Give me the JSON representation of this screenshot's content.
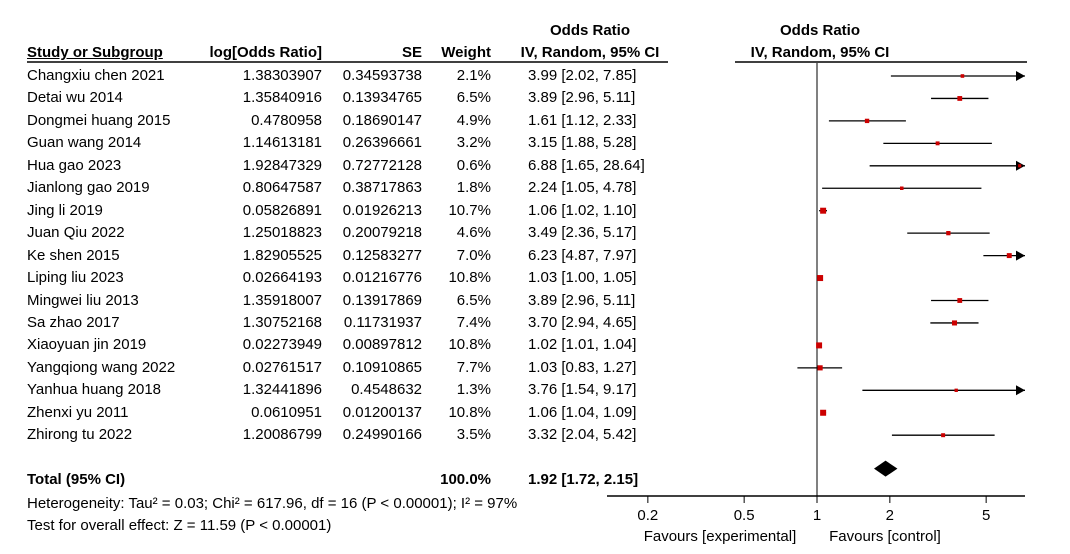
{
  "headers": {
    "group_effect": "Odds Ratio",
    "group_plot": "Odds Ratio",
    "study": "Study or Subgroup",
    "log_or": "log[Odds Ratio]",
    "se": "SE",
    "weight": "Weight",
    "ci": "IV, Random, 95% CI",
    "plot_ci": "IV, Random, 95% CI"
  },
  "studies": [
    {
      "name": "Changxiu chen 2021",
      "log_or": "1.38303907",
      "se": "0.34593738",
      "weight": "2.1%",
      "ci_text": "3.99 [2.02, 7.85]",
      "or": 3.99,
      "lo": 2.02,
      "hi": 7.85
    },
    {
      "name": "Detai wu 2014",
      "log_or": "1.35840916",
      "se": "0.13934765",
      "weight": "6.5%",
      "ci_text": "3.89 [2.96, 5.11]",
      "or": 3.89,
      "lo": 2.96,
      "hi": 5.11
    },
    {
      "name": "Dongmei huang 2015",
      "log_or": "0.4780958",
      "se": "0.18690147",
      "weight": "4.9%",
      "ci_text": "1.61 [1.12, 2.33]",
      "or": 1.61,
      "lo": 1.12,
      "hi": 2.33
    },
    {
      "name": "Guan wang 2014",
      "log_or": "1.14613181",
      "se": "0.26396661",
      "weight": "3.2%",
      "ci_text": "3.15 [1.88, 5.28]",
      "or": 3.15,
      "lo": 1.88,
      "hi": 5.28
    },
    {
      "name": "Hua gao 2023",
      "log_or": "1.92847329",
      "se": "0.72772128",
      "weight": "0.6%",
      "ci_text": "6.88 [1.65, 28.64]",
      "or": 6.88,
      "lo": 1.65,
      "hi": 28.64
    },
    {
      "name": "Jianlong gao 2019",
      "log_or": "0.80647587",
      "se": "0.38717863",
      "weight": "1.8%",
      "ci_text": "2.24 [1.05, 4.78]",
      "or": 2.24,
      "lo": 1.05,
      "hi": 4.78
    },
    {
      "name": "Jing li 2019",
      "log_or": "0.05826891",
      "se": "0.01926213",
      "weight": "10.7%",
      "ci_text": "1.06 [1.02, 1.10]",
      "or": 1.06,
      "lo": 1.02,
      "hi": 1.1
    },
    {
      "name": "Juan Qiu 2022",
      "log_or": "1.25018823",
      "se": "0.20079218",
      "weight": "4.6%",
      "ci_text": "3.49 [2.36, 5.17]",
      "or": 3.49,
      "lo": 2.36,
      "hi": 5.17
    },
    {
      "name": "Ke shen 2015",
      "log_or": "1.82905525",
      "se": "0.12583277",
      "weight": "7.0%",
      "ci_text": "6.23 [4.87, 7.97]",
      "or": 6.23,
      "lo": 4.87,
      "hi": 7.97
    },
    {
      "name": "Liping liu 2023",
      "log_or": "0.02664193",
      "se": "0.01216776",
      "weight": "10.8%",
      "ci_text": "1.03 [1.00, 1.05]",
      "or": 1.03,
      "lo": 1.0,
      "hi": 1.05
    },
    {
      "name": "Mingwei liu 2013",
      "log_or": "1.35918007",
      "se": "0.13917869",
      "weight": "6.5%",
      "ci_text": "3.89 [2.96, 5.11]",
      "or": 3.89,
      "lo": 2.96,
      "hi": 5.11
    },
    {
      "name": "Sa zhao 2017",
      "log_or": "1.30752168",
      "se": "0.11731937",
      "weight": "7.4%",
      "ci_text": "3.70 [2.94, 4.65]",
      "or": 3.7,
      "lo": 2.94,
      "hi": 4.65
    },
    {
      "name": "Xiaoyuan jin 2019",
      "log_or": "0.02273949",
      "se": "0.00897812",
      "weight": "10.8%",
      "ci_text": "1.02 [1.01, 1.04]",
      "or": 1.02,
      "lo": 1.01,
      "hi": 1.04
    },
    {
      "name": "Yangqiong wang 2022",
      "log_or": "0.02761517",
      "se": "0.10910865",
      "weight": "7.7%",
      "ci_text": "1.03 [0.83, 1.27]",
      "or": 1.03,
      "lo": 0.83,
      "hi": 1.27
    },
    {
      "name": "Yanhua huang 2018",
      "log_or": "1.32441896",
      "se": "0.4548632",
      "weight": "1.3%",
      "ci_text": "3.76 [1.54, 9.17]",
      "or": 3.76,
      "lo": 1.54,
      "hi": 9.17
    },
    {
      "name": "Zhenxi yu 2011",
      "log_or": "0.0610951",
      "se": "0.01200137",
      "weight": "10.8%",
      "ci_text": "1.06 [1.04, 1.09]",
      "or": 1.06,
      "lo": 1.04,
      "hi": 1.09
    },
    {
      "name": "Zhirong tu 2022",
      "log_or": "1.20086799",
      "se": "0.24990166",
      "weight": "3.5%",
      "ci_text": "3.32 [2.04, 5.42]",
      "or": 3.32,
      "lo": 2.04,
      "hi": 5.42
    }
  ],
  "total": {
    "label": "Total (95% CI)",
    "weight": "100.0%",
    "ci_text": "1.92 [1.72, 2.15]",
    "or": 1.92,
    "lo": 1.72,
    "hi": 2.15
  },
  "heterogeneity": "Heterogeneity: Tau² = 0.03; Chi² = 617.96, df = 16 (P < 0.00001); I² = 97%",
  "overall_effect": "Test for overall effect: Z = 11.59 (P < 0.00001)",
  "axis": {
    "ticks": [
      0.2,
      0.5,
      1,
      2,
      5
    ],
    "tick_labels": [
      "0.2",
      "0.5",
      "1",
      "2",
      "5"
    ],
    "scale": "log",
    "xlim": [
      0.14,
      7.3
    ],
    "favours_left": "Favours [experimental]",
    "favours_right": "Favours [control]"
  },
  "colors": {
    "point": "#cc0000",
    "line": "#000000",
    "diamond": "#000000"
  },
  "chart_data": {
    "type": "forest",
    "scale": "log",
    "effect_measure": "Odds Ratio",
    "null_value": 1,
    "points": [
      3.99,
      3.89,
      1.61,
      3.15,
      6.88,
      2.24,
      1.06,
      3.49,
      6.23,
      1.03,
      3.89,
      3.7,
      1.02,
      1.03,
      3.76,
      1.06,
      3.32
    ],
    "ci_low": [
      2.02,
      2.96,
      1.12,
      1.88,
      1.65,
      1.05,
      1.02,
      2.36,
      4.87,
      1.0,
      2.96,
      2.94,
      1.01,
      0.83,
      1.54,
      1.04,
      2.04
    ],
    "ci_high": [
      7.85,
      5.11,
      2.33,
      5.28,
      28.64,
      4.78,
      1.1,
      5.17,
      7.97,
      1.05,
      5.11,
      4.65,
      1.04,
      1.27,
      9.17,
      1.09,
      5.42
    ],
    "pooled": {
      "or": 1.92,
      "lo": 1.72,
      "hi": 2.15
    },
    "x_ticks": [
      0.2,
      0.5,
      1,
      2,
      5
    ]
  }
}
